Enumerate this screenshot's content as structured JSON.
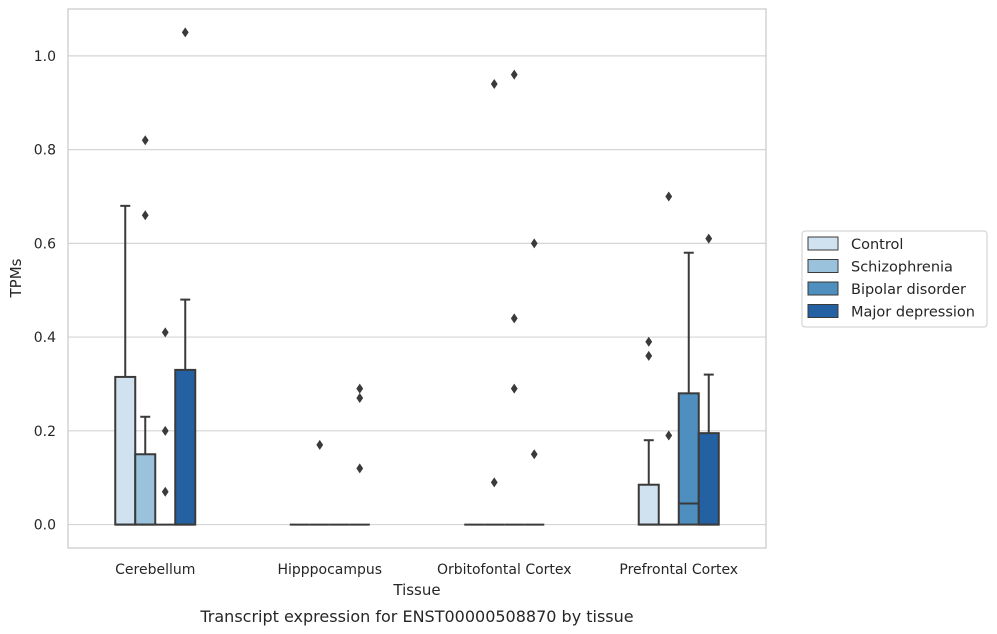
{
  "caption": "Transcript expression for ENST00000508870 by tissue",
  "chart_data": {
    "type": "box",
    "xlabel": "Tissue",
    "ylabel": "TPMs",
    "ylim": [
      -0.05,
      1.1
    ],
    "yticks": [
      0.0,
      0.2,
      0.4,
      0.6,
      0.8,
      1.0
    ],
    "ytick_labels": [
      "0.0",
      "0.2",
      "0.4",
      "0.6",
      "0.8",
      "1.0"
    ],
    "grid": "horizontal",
    "legend_position": "right",
    "categories": [
      "Cerebellum",
      "Hipppocampus",
      "Orbitofontal Cortex",
      "Prefrontal Cortex"
    ],
    "groups": [
      {
        "name": "Control",
        "color": "#d0e1f0"
      },
      {
        "name": "Schizophrenia",
        "color": "#9bc2dc"
      },
      {
        "name": "Bipolar disorder",
        "color": "#4f8fbf"
      },
      {
        "name": "Major depression",
        "color": "#2461a3"
      }
    ],
    "boxes": [
      [
        {
          "q1": 0,
          "median": 0,
          "q3": 0.315,
          "whisker_low": 0,
          "whisker_high": 0.68,
          "outliers": []
        },
        {
          "q1": 0,
          "median": 0,
          "q3": 0.15,
          "whisker_low": 0,
          "whisker_high": 0.23,
          "outliers": [
            0.82,
            0.66
          ]
        },
        {
          "q1": 0,
          "median": 0,
          "q3": 0,
          "whisker_low": 0,
          "whisker_high": 0,
          "outliers": [
            0.41,
            0.2,
            0.07
          ]
        },
        {
          "q1": 0,
          "median": 0,
          "q3": 0.33,
          "whisker_low": 0,
          "whisker_high": 0.48,
          "outliers": [
            1.05
          ]
        }
      ],
      [
        {
          "q1": 0,
          "median": 0,
          "q3": 0,
          "whisker_low": 0,
          "whisker_high": 0,
          "outliers": []
        },
        {
          "q1": 0,
          "median": 0,
          "q3": 0,
          "whisker_low": 0,
          "whisker_high": 0,
          "outliers": [
            0.17
          ]
        },
        {
          "q1": 0,
          "median": 0,
          "q3": 0,
          "whisker_low": 0,
          "whisker_high": 0,
          "outliers": []
        },
        {
          "q1": 0,
          "median": 0,
          "q3": 0,
          "whisker_low": 0,
          "whisker_high": 0,
          "outliers": [
            0.29,
            0.27,
            0.12
          ]
        }
      ],
      [
        {
          "q1": 0,
          "median": 0,
          "q3": 0,
          "whisker_low": 0,
          "whisker_high": 0,
          "outliers": []
        },
        {
          "q1": 0,
          "median": 0,
          "q3": 0,
          "whisker_low": 0,
          "whisker_high": 0,
          "outliers": [
            0.94,
            0.09
          ]
        },
        {
          "q1": 0,
          "median": 0,
          "q3": 0,
          "whisker_low": 0,
          "whisker_high": 0,
          "outliers": [
            0.96,
            0.44,
            0.29
          ]
        },
        {
          "q1": 0,
          "median": 0,
          "q3": 0,
          "whisker_low": 0,
          "whisker_high": 0,
          "outliers": [
            0.6,
            0.15
          ]
        }
      ],
      [
        {
          "q1": 0,
          "median": 0,
          "q3": 0.085,
          "whisker_low": 0,
          "whisker_high": 0.18,
          "outliers": [
            0.39,
            0.36
          ]
        },
        {
          "q1": 0,
          "median": 0,
          "q3": 0,
          "whisker_low": 0,
          "whisker_high": 0,
          "outliers": [
            0.7,
            0.19
          ]
        },
        {
          "q1": 0,
          "median": 0.045,
          "q3": 0.28,
          "whisker_low": 0,
          "whisker_high": 0.58,
          "outliers": []
        },
        {
          "q1": 0,
          "median": 0,
          "q3": 0.195,
          "whisker_low": 0,
          "whisker_high": 0.32,
          "outliers": [
            0.61
          ]
        }
      ]
    ]
  },
  "colors": {
    "grid": "#d5d5d5",
    "frame": "#c8c8c8",
    "box_edge": "#3a3a3a",
    "outlier": "#3a3a3a"
  }
}
